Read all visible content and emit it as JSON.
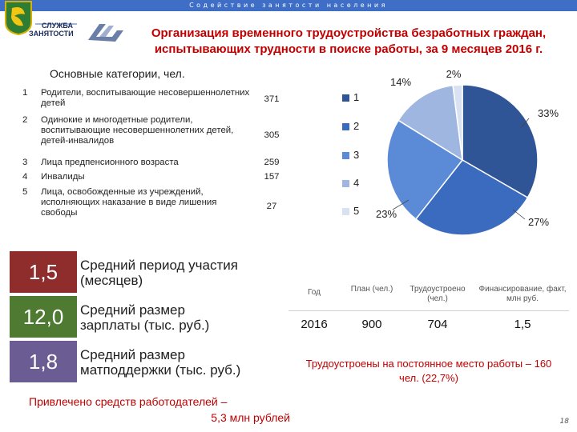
{
  "header": {
    "banner_text": "Содействие занятости населения",
    "service_logo_text": "СЛУЖБА\nЗАНЯТОСТИ",
    "title_line1": "Организация временного трудоустройства безработных граждан,",
    "title_line2": "испытывающих трудности в поиске работы, за 9 месяцев 2016 г."
  },
  "categories": {
    "heading": "Основные категории, чел.",
    "items": [
      {
        "num": "1",
        "label": "Родители, воспитывающие несовершеннолетних детей",
        "value": "371"
      },
      {
        "num": "2",
        "label": "Одинокие и многодетные родители, воспитывающие несовершеннолетних детей, детей-инвалидов",
        "value": "305"
      },
      {
        "num": "3",
        "label": "Лица предпенсионного возраста",
        "value": "259"
      },
      {
        "num": "4",
        "label": "Инвалиды",
        "value": "157"
      },
      {
        "num": "5",
        "label": "Лица, освобожденные из учреждений, исполняющих наказание в виде лишения свободы",
        "value": "27"
      }
    ]
  },
  "stats": [
    {
      "value": "1,5",
      "label": "Средний период участия (месяцев)",
      "color": "#8f2c2c"
    },
    {
      "value": "12,0",
      "label": "Средний размер зарплаты (тыс. руб.)",
      "color": "#4f7a32"
    },
    {
      "value": "1,8",
      "label": "Средний размер матподдержки (тыс. руб.)",
      "color": "#6b5d94"
    }
  ],
  "employers_note": {
    "line1": "Привлечено средств работодателей –",
    "line2": "5,3 млн рублей"
  },
  "table": {
    "headers": [
      "Год",
      "План (чел.)",
      "Трудоустроено (чел.)",
      "Финансирование, факт, млн руб."
    ],
    "rows": [
      [
        "2016",
        "900",
        "704",
        "1,5"
      ]
    ]
  },
  "employment_note": "Трудоустроены на постоянное место работы – 160 чел. (22,7%)",
  "page_number": "18",
  "chart_data": {
    "type": "pie",
    "categories": [
      "1",
      "2",
      "3",
      "4",
      "5"
    ],
    "values": [
      33,
      27,
      23,
      14,
      2
    ],
    "labels": [
      "33%",
      "27%",
      "23%",
      "14%",
      "2%"
    ],
    "colors": [
      "#2f5597",
      "#3a6bbf",
      "#5b8ad6",
      "#9fb6e0",
      "#d9e2f3"
    ],
    "legend_position": "left"
  },
  "colors": {
    "banner": "#3f6ec6",
    "title": "#c00000"
  }
}
